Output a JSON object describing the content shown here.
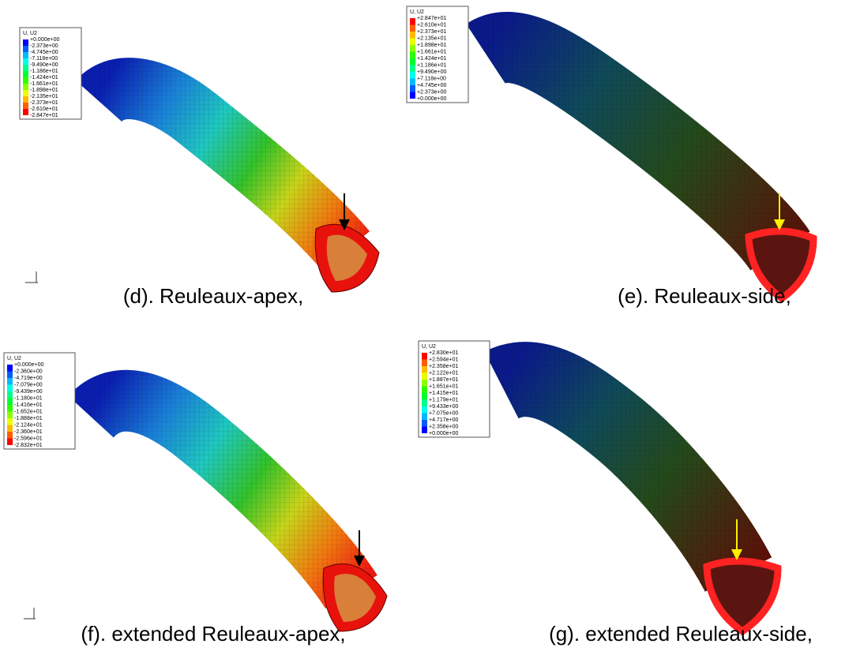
{
  "panels": [
    {
      "legend_title": "U, U2",
      "legend_labels": [
        "+0.000e+00",
        "-2.373e+00",
        "-4.745e+00",
        "-7.118e+00",
        "-9.490e+00",
        "-1.186e+01",
        "-1.424e+01",
        "-1.661e+01",
        "-1.898e+01",
        "-2.135e+01",
        "-2.373e+01",
        "-2.610e+01",
        "-2.847e+01"
      ],
      "caption": "(d). Reuleaux-apex,"
    },
    {
      "legend_title": "U, U2",
      "legend_labels": [
        "+2.847e+01",
        "+2.610e+01",
        "+2.373e+01",
        "+2.135e+01",
        "+1.898e+01",
        "+1.661e+01",
        "+1.424e+01",
        "+1.186e+01",
        "+9.490e+00",
        "+7.118e+00",
        "+4.745e+00",
        "+2.373e+00",
        "+0.000e+00"
      ],
      "caption": "(e). Reuleaux-side,"
    },
    {
      "legend_title": "U, U2",
      "legend_labels": [
        "+0.000e+00",
        "-2.360e+00",
        "-4.719e+00",
        "-7.079e+00",
        "-9.439e+00",
        "-1.180e+01",
        "-1.416e+01",
        "-1.652e+01",
        "-1.888e+01",
        "-2.124e+01",
        "-2.360e+01",
        "-2.596e+01",
        "-2.832e+01"
      ],
      "caption": "(f). extended Reuleaux-apex,"
    },
    {
      "legend_title": "U, U2",
      "legend_labels": [
        "+2.830e+01",
        "+2.594e+01",
        "+2.358e+01",
        "+2.122e+01",
        "+1.887e+01",
        "+1.651e+01",
        "+1.415e+01",
        "+1.179e+01",
        "+9.433e+00",
        "+7.075e+00",
        "+4.717e+00",
        "+2.358e+00",
        "+0.000e+00"
      ],
      "caption": "(g). extended Reuleaux-side,"
    }
  ]
}
